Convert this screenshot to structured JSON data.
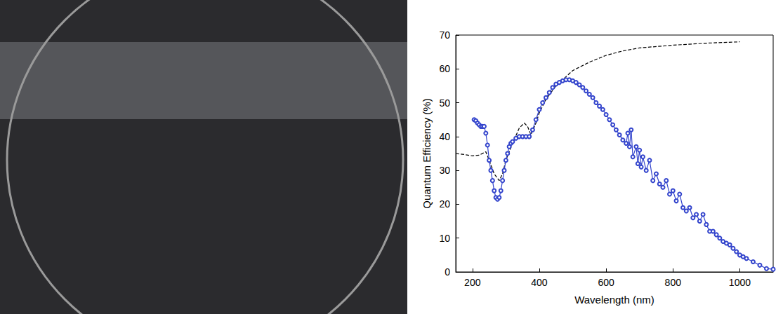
{
  "chart_data": {
    "type": "line",
    "x_label": "Wavelength (nm)",
    "y_label": "Quantum Efficiency (%)",
    "xlim": [
      150,
      1100
    ],
    "xticks": [
      200,
      400,
      600,
      800,
      1000
    ],
    "ylim": [
      0,
      70
    ],
    "yticks": [
      0,
      10,
      20,
      30,
      40,
      50,
      60,
      70
    ],
    "grid": false,
    "series": [
      {
        "color": "#000000",
        "line_style": "dashed",
        "marker": "none",
        "x": [
          150,
          175,
          200,
          220,
          240,
          250,
          265,
          280,
          290,
          300,
          320,
          340,
          355,
          365,
          375,
          390,
          400,
          420,
          450,
          500,
          550,
          600,
          650,
          700,
          800,
          900,
          1000
        ],
        "values": [
          35,
          34.7,
          34.3,
          34.5,
          35.5,
          33,
          29,
          27,
          29,
          33,
          38,
          42.5,
          44,
          43,
          40.5,
          44,
          47,
          51,
          55,
          59.5,
          62,
          64,
          65.3,
          66.2,
          67,
          67.6,
          68
        ]
      },
      {
        "color": "#3344cc",
        "line_style": "solid",
        "marker": "circle",
        "x": [
          205,
          210,
          215,
          220,
          225,
          230,
          235,
          240,
          245,
          250,
          255,
          260,
          265,
          270,
          275,
          280,
          285,
          290,
          295,
          300,
          305,
          310,
          315,
          320,
          330,
          340,
          350,
          360,
          370,
          380,
          390,
          400,
          410,
          420,
          430,
          440,
          450,
          460,
          470,
          480,
          490,
          500,
          510,
          520,
          530,
          540,
          550,
          560,
          570,
          580,
          590,
          600,
          610,
          620,
          630,
          640,
          650,
          660,
          665,
          670,
          675,
          680,
          690,
          695,
          700,
          705,
          710,
          720,
          730,
          740,
          750,
          760,
          770,
          780,
          790,
          800,
          810,
          820,
          830,
          840,
          850,
          860,
          870,
          880,
          890,
          900,
          910,
          920,
          930,
          940,
          950,
          960,
          970,
          980,
          990,
          1000,
          1010,
          1020,
          1040,
          1060,
          1080,
          1100
        ],
        "values": [
          45,
          44.7,
          44,
          43.5,
          43,
          43,
          43,
          41,
          37.5,
          33,
          30,
          27,
          24,
          22,
          21.5,
          22,
          24,
          27,
          30,
          33,
          35,
          37,
          38,
          38.5,
          39.5,
          40,
          40,
          40,
          40,
          42,
          45,
          48,
          50,
          51.5,
          53,
          54.5,
          55.5,
          56,
          56.5,
          56.8,
          56.8,
          56.5,
          56,
          55.3,
          54.5,
          53.5,
          52.5,
          51.5,
          50,
          49,
          48,
          46.5,
          45,
          43.5,
          42,
          40.5,
          39,
          38,
          41,
          37,
          42,
          34,
          37,
          32,
          36,
          31,
          34,
          30,
          33,
          27,
          29,
          26,
          25,
          27,
          23,
          24,
          21,
          23,
          19,
          18,
          19,
          16,
          17,
          15,
          17,
          14,
          12,
          12,
          11,
          10,
          9,
          8.5,
          8,
          7,
          6,
          5,
          4.5,
          4,
          3,
          2,
          1,
          0.8
        ]
      }
    ]
  }
}
